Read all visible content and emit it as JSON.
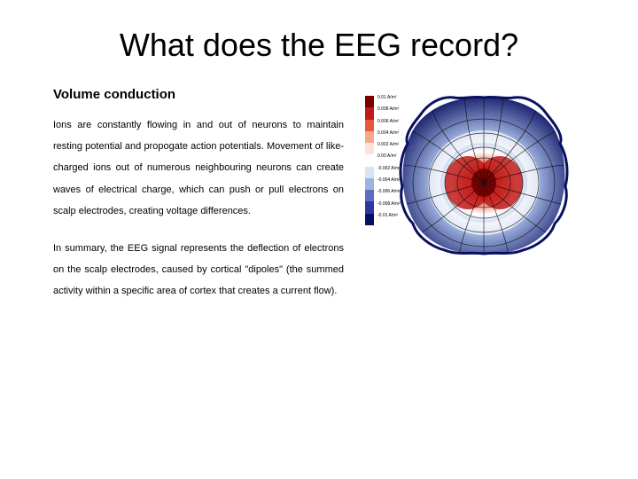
{
  "title": "What does the EEG record?",
  "subheading": "Volume conduction",
  "paragraph1": "Ions are constantly flowing in and out of neurons to maintain resting potential and propogate action potentials. Movement of like-charged ions out of numerous neighbouring neurons can create waves of electrical charge, which can push or pull electrons on scalp electrodes, creating voltage differences.",
  "paragraph2": "In summary, the EEG signal represents the deflection of electrons on the scalp electrodes, caused by cortical \"dipoles\" (the summed activity within a specific area of cortex that creates a current flow).",
  "figure": {
    "type": "infographic",
    "description": "brain-volume-conduction-field-map",
    "legend": {
      "unit": "A/m²",
      "values": [
        "0.01",
        "0.008",
        "0.006",
        "0.004",
        "0.002",
        "0.00",
        "-0.002",
        "-0.004",
        "-0.006",
        "-0.008",
        "-0.01"
      ],
      "colors": [
        "#7a0000",
        "#c21a1a",
        "#e65a3a",
        "#f6a98a",
        "#fbe3d8",
        "#ffffff",
        "#d9e3f3",
        "#9fb3e0",
        "#5a6fc4",
        "#2a3aa0",
        "#0a1060"
      ]
    },
    "brain_outline_color": "#0a1060",
    "field_center_color": "#7a0000",
    "field_mid_color": "#ffffff",
    "field_outer_color": "#0a1060",
    "fieldline_color": "#101010",
    "background_color": "#ffffff"
  }
}
